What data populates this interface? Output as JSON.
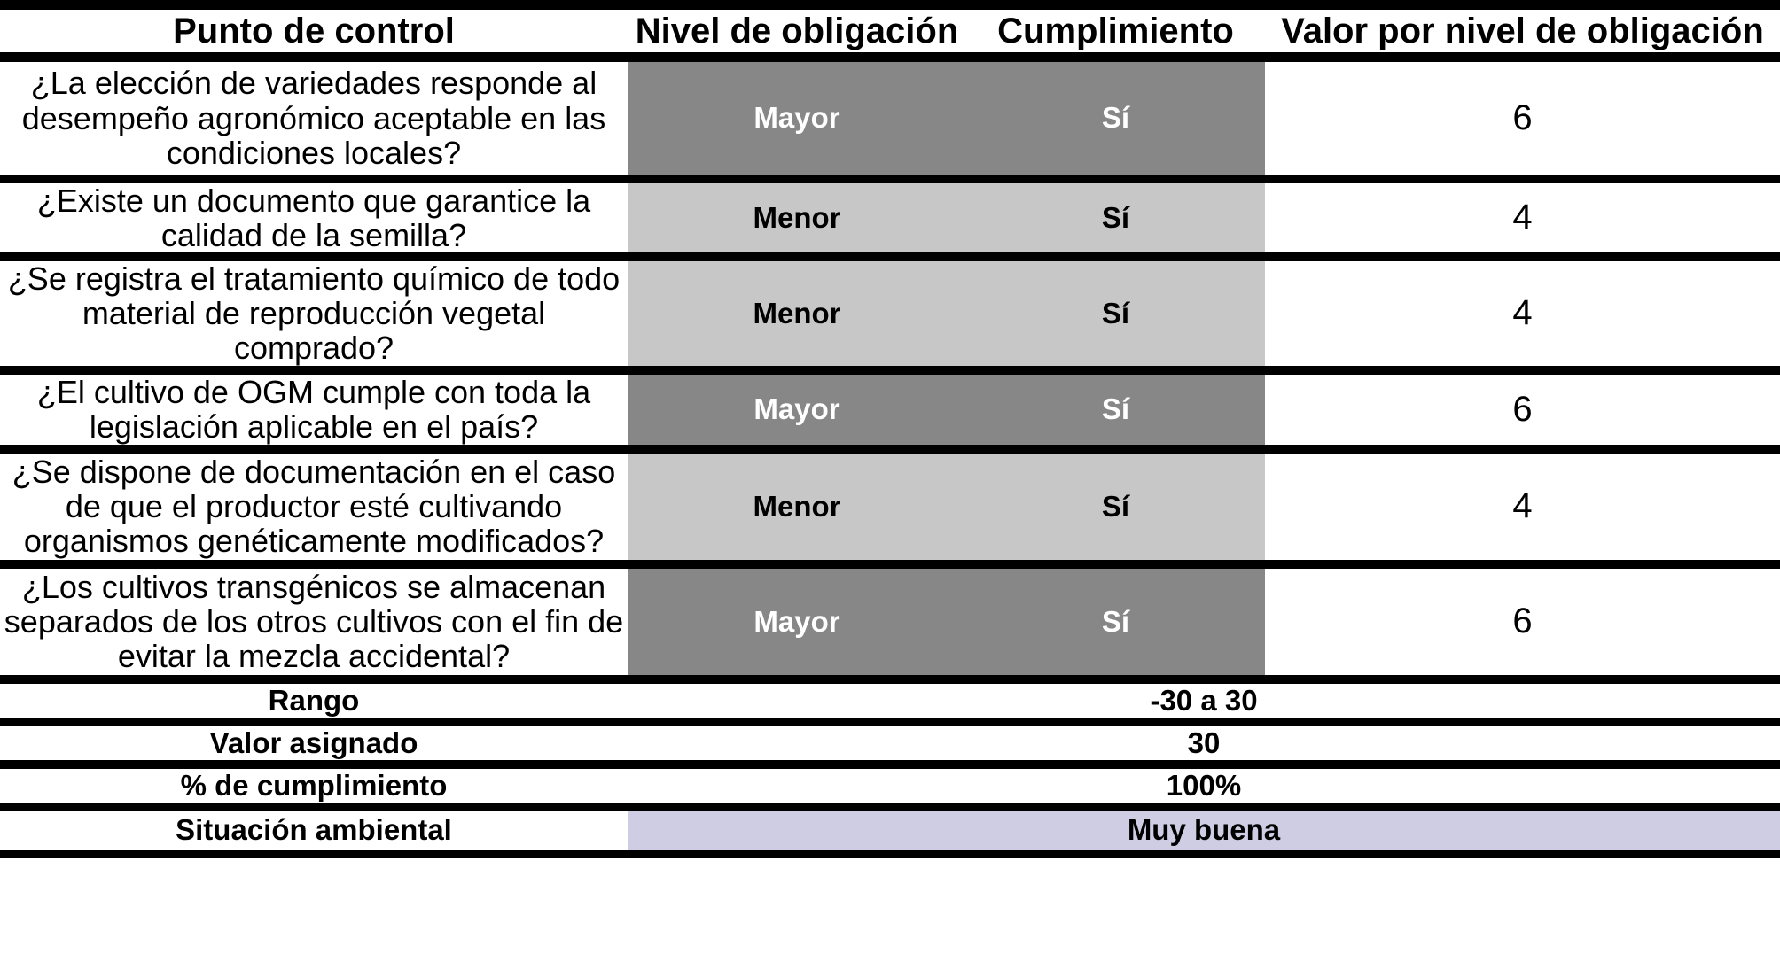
{
  "table": {
    "headers": {
      "control_point": "Punto de control",
      "obligation_level": "Nivel de obligación",
      "compliance": "Cumplimiento",
      "value_per_level": "Valor por nivel de obligación"
    },
    "rows": [
      {
        "question": "¿La elección de variedades responde al desempeño agronómico aceptable en las condiciones locales?",
        "level": "Mayor",
        "compliance": "Sí",
        "value": "6",
        "tone": "dark"
      },
      {
        "question": "¿Existe un documento que garantice la calidad de la semilla?",
        "level": "Menor",
        "compliance": "Sí",
        "value": "4",
        "tone": "light"
      },
      {
        "question": "¿Se registra el tratamiento químico de todo material de reproducción vegetal comprado?",
        "level": "Menor",
        "compliance": "Sí",
        "value": "4",
        "tone": "light"
      },
      {
        "question": "¿El cultivo de OGM cumple con toda la legislación aplicable en el país?",
        "level": "Mayor",
        "compliance": "Sí",
        "value": "6",
        "tone": "dark"
      },
      {
        "question": "¿Se dispone de documentación en el caso de que el productor esté cultivando organismos genéticamente modificados?",
        "level": "Menor",
        "compliance": "Sí",
        "value": "4",
        "tone": "light"
      },
      {
        "question": "¿Los cultivos transgénicos se almacenan separados de los otros cultivos con el fin de evitar la mezcla accidental?",
        "level": "Mayor",
        "compliance": "Sí",
        "value": "6",
        "tone": "dark"
      }
    ],
    "summary": [
      {
        "label": "Rango",
        "value": "-30 a 30"
      },
      {
        "label": "Valor asignado",
        "value": "30"
      },
      {
        "label": "% de cumplimiento",
        "value": "100%"
      },
      {
        "label": "Situación ambiental",
        "value": "Muy buena",
        "highlighted": true
      }
    ],
    "colors": {
      "major_row_bg": "#878787",
      "major_row_text": "#ffffff",
      "minor_row_bg": "#c7c7c7",
      "minor_row_text": "#000000",
      "environmental_status_bg": "#cfcde3",
      "border": "#000000"
    }
  }
}
